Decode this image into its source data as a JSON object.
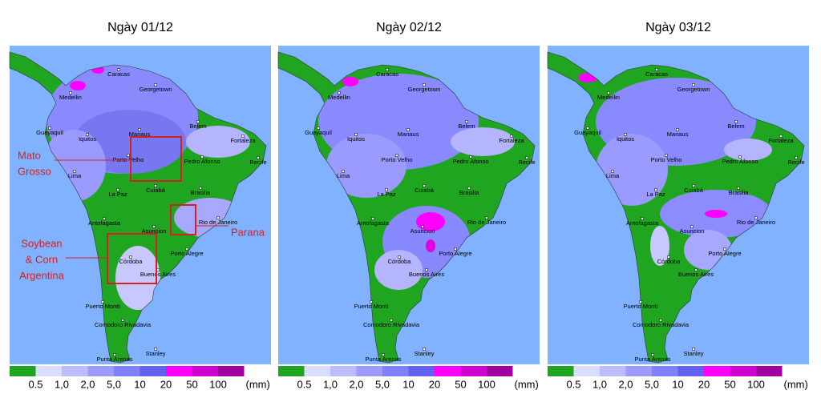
{
  "panels": [
    {
      "title": "Ngày 01/12"
    },
    {
      "title": "Ngày 02/12"
    },
    {
      "title": "Ngày 03/12"
    }
  ],
  "cities": [
    "Caracas",
    "Georgetown",
    "Medellin",
    "Belem",
    "Guayaquil",
    "Manaus",
    "Fortaleza",
    "Iquitos",
    "Porto Velho",
    "Pedro Afonso",
    "Recife",
    "Lima",
    "Cuiabá",
    "Brasilia",
    "La Paz",
    "Rio de Janeiro",
    "Antofagasta",
    "Asuncion",
    "Porto Alegre",
    "Córdoba",
    "Buenos Aires",
    "Puerto Montt",
    "Comodoro Rivadavia",
    "Stanley",
    "Punta Arenas"
  ],
  "legend": {
    "labels": [
      "0.5",
      "1,0",
      "2,0",
      "5,0",
      "10",
      "20",
      "50",
      "100"
    ],
    "unit": "(mm)",
    "colors": [
      "#1fa51f",
      "#dcdcff",
      "#bcbcff",
      "#9c9cff",
      "#8080ff",
      "#6262ee",
      "#ff00ff",
      "#d000d0",
      "#a000a0"
    ]
  },
  "annotations": [
    {
      "lines": [
        "Mato",
        "Grosso"
      ]
    },
    {
      "lines": [
        "Parana"
      ]
    },
    {
      "lines": [
        "Soybean",
        "& Corn",
        "Argentina"
      ]
    }
  ]
}
